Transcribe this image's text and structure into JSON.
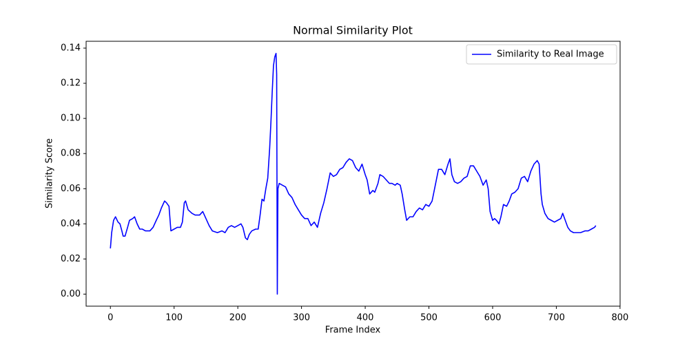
{
  "chart_data": {
    "type": "line",
    "title": "Normal Similarity Plot",
    "xlabel": "Frame Index",
    "ylabel": "Similarity Score",
    "x": [
      0,
      2,
      5,
      8,
      12,
      15,
      18,
      20,
      23,
      27,
      30,
      35,
      38,
      42,
      46,
      50,
      55,
      62,
      67,
      72,
      76,
      80,
      85,
      88,
      92,
      95,
      100,
      105,
      110,
      113,
      116,
      118,
      122,
      128,
      133,
      140,
      145,
      150,
      155,
      160,
      168,
      175,
      180,
      185,
      190,
      195,
      200,
      205,
      208,
      212,
      215,
      218,
      222,
      228,
      232,
      235,
      238,
      241,
      244,
      247,
      250,
      252,
      254,
      256,
      258,
      260,
      261,
      262,
      263,
      265,
      270,
      275,
      280,
      285,
      290,
      295,
      300,
      305,
      310,
      315,
      320,
      325,
      330,
      335,
      340,
      345,
      350,
      355,
      360,
      365,
      370,
      375,
      380,
      385,
      390,
      395,
      400,
      403,
      407,
      412,
      415,
      420,
      423,
      428,
      433,
      438,
      442,
      447,
      450,
      455,
      458,
      462,
      465,
      470,
      475,
      480,
      485,
      490,
      495,
      500,
      505,
      510,
      515,
      520,
      525,
      530,
      533,
      536,
      540,
      545,
      550,
      555,
      560,
      565,
      570,
      575,
      580,
      585,
      590,
      593,
      596,
      600,
      603,
      606,
      610,
      613,
      617,
      622,
      626,
      630,
      635,
      640,
      645,
      650,
      655,
      660,
      665,
      670,
      673,
      676,
      678,
      682,
      687,
      692,
      697,
      702,
      707,
      710,
      714,
      718,
      722,
      727,
      732,
      738,
      745,
      750,
      755,
      760,
      762
    ],
    "series": [
      {
        "name": "Similarity to Real Image",
        "color": "#0000ff",
        "values": [
          0.026,
          0.035,
          0.042,
          0.044,
          0.041,
          0.04,
          0.036,
          0.033,
          0.033,
          0.038,
          0.042,
          0.043,
          0.044,
          0.04,
          0.037,
          0.037,
          0.036,
          0.036,
          0.038,
          0.042,
          0.045,
          0.049,
          0.053,
          0.052,
          0.05,
          0.036,
          0.037,
          0.038,
          0.038,
          0.041,
          0.052,
          0.053,
          0.048,
          0.046,
          0.045,
          0.045,
          0.047,
          0.043,
          0.039,
          0.036,
          0.035,
          0.036,
          0.035,
          0.038,
          0.039,
          0.038,
          0.039,
          0.04,
          0.038,
          0.032,
          0.031,
          0.034,
          0.036,
          0.037,
          0.037,
          0.045,
          0.054,
          0.053,
          0.06,
          0.066,
          0.083,
          0.098,
          0.115,
          0.13,
          0.135,
          0.137,
          0.125,
          0.0,
          0.06,
          0.063,
          0.062,
          0.061,
          0.057,
          0.055,
          0.051,
          0.048,
          0.045,
          0.043,
          0.043,
          0.039,
          0.041,
          0.038,
          0.046,
          0.052,
          0.06,
          0.069,
          0.067,
          0.068,
          0.071,
          0.072,
          0.075,
          0.077,
          0.076,
          0.072,
          0.07,
          0.074,
          0.068,
          0.065,
          0.057,
          0.059,
          0.058,
          0.063,
          0.068,
          0.067,
          0.065,
          0.063,
          0.063,
          0.062,
          0.063,
          0.062,
          0.057,
          0.048,
          0.042,
          0.044,
          0.044,
          0.047,
          0.049,
          0.048,
          0.051,
          0.05,
          0.053,
          0.062,
          0.071,
          0.071,
          0.068,
          0.074,
          0.077,
          0.068,
          0.064,
          0.063,
          0.064,
          0.066,
          0.067,
          0.073,
          0.073,
          0.07,
          0.067,
          0.062,
          0.065,
          0.06,
          0.047,
          0.042,
          0.043,
          0.042,
          0.04,
          0.044,
          0.051,
          0.05,
          0.053,
          0.057,
          0.058,
          0.06,
          0.066,
          0.067,
          0.064,
          0.07,
          0.074,
          0.076,
          0.074,
          0.057,
          0.051,
          0.046,
          0.043,
          0.042,
          0.041,
          0.042,
          0.043,
          0.046,
          0.042,
          0.038,
          0.036,
          0.035,
          0.035,
          0.035,
          0.036,
          0.036,
          0.037,
          0.038,
          0.039
        ]
      }
    ],
    "xlim": [
      -38.1,
      800.1
    ],
    "xticks": [
      0,
      100,
      200,
      300,
      400,
      500,
      600,
      700,
      800
    ],
    "ylim": [
      -0.00685,
      0.1439
    ],
    "yticks": [
      {
        "value": 0,
        "label": "0.00"
      },
      {
        "value": 0.02,
        "label": "0.02"
      },
      {
        "value": 0.04,
        "label": "0.04"
      },
      {
        "value": 0.06,
        "label": "0.06"
      },
      {
        "value": 0.08,
        "label": "0.08"
      },
      {
        "value": 0.1,
        "label": "0.10"
      },
      {
        "value": 0.12,
        "label": "0.12"
      },
      {
        "value": 0.14,
        "label": "0.14"
      }
    ],
    "legend": "upper right"
  }
}
